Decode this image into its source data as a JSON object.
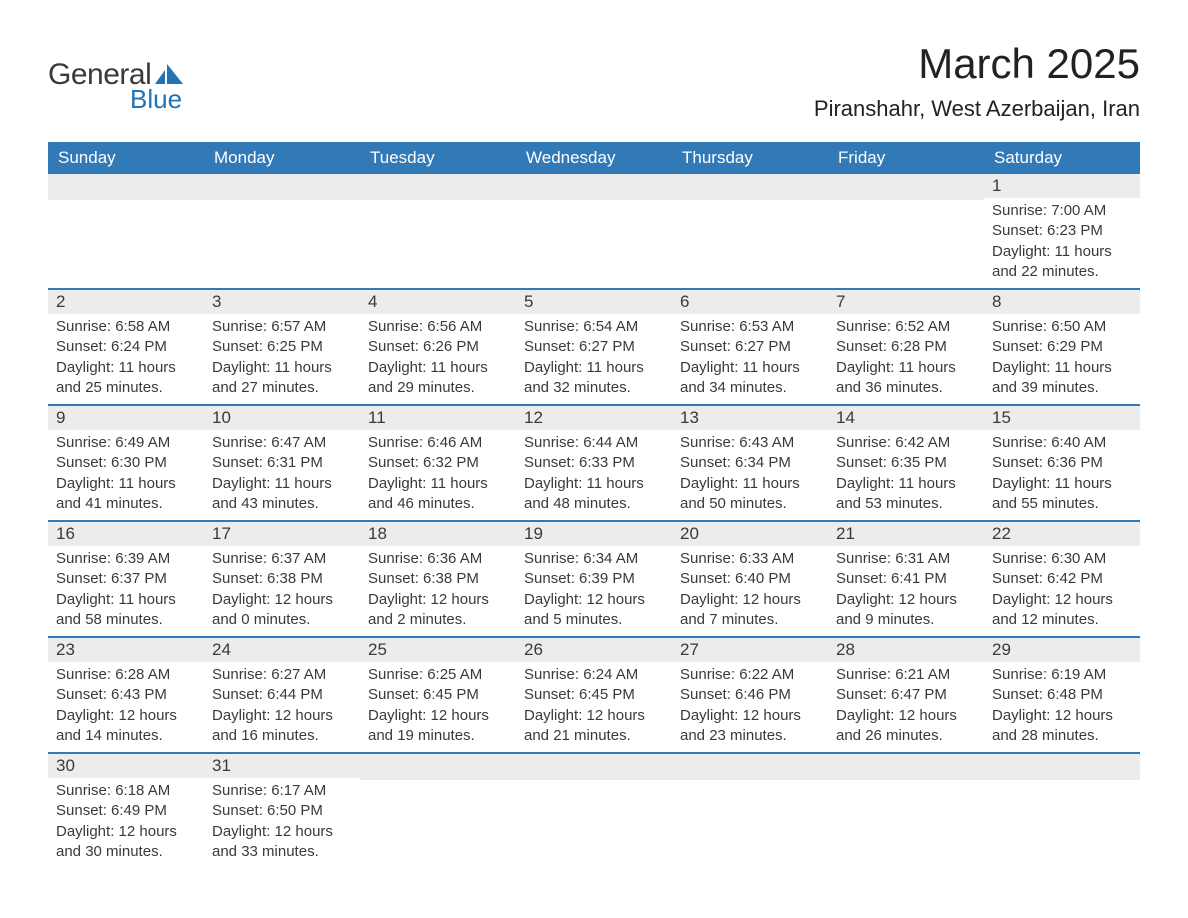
{
  "logo": {
    "text1": "General",
    "text2": "Blue",
    "shape_color": "#2273b5"
  },
  "title": "March 2025",
  "location": "Piranshahr, West Azerbaijan, Iran",
  "colors": {
    "header_bg": "#3279b7",
    "header_text": "#ffffff",
    "daynum_bg": "#ececec",
    "row_border": "#3279b7",
    "text": "#3a3a3a"
  },
  "day_headers": [
    "Sunday",
    "Monday",
    "Tuesday",
    "Wednesday",
    "Thursday",
    "Friday",
    "Saturday"
  ],
  "weeks": [
    [
      null,
      null,
      null,
      null,
      null,
      null,
      {
        "n": "1",
        "sunrise": "7:00 AM",
        "sunset": "6:23 PM",
        "dl1": "11 hours",
        "dl2": "and 22 minutes."
      }
    ],
    [
      {
        "n": "2",
        "sunrise": "6:58 AM",
        "sunset": "6:24 PM",
        "dl1": "11 hours",
        "dl2": "and 25 minutes."
      },
      {
        "n": "3",
        "sunrise": "6:57 AM",
        "sunset": "6:25 PM",
        "dl1": "11 hours",
        "dl2": "and 27 minutes."
      },
      {
        "n": "4",
        "sunrise": "6:56 AM",
        "sunset": "6:26 PM",
        "dl1": "11 hours",
        "dl2": "and 29 minutes."
      },
      {
        "n": "5",
        "sunrise": "6:54 AM",
        "sunset": "6:27 PM",
        "dl1": "11 hours",
        "dl2": "and 32 minutes."
      },
      {
        "n": "6",
        "sunrise": "6:53 AM",
        "sunset": "6:27 PM",
        "dl1": "11 hours",
        "dl2": "and 34 minutes."
      },
      {
        "n": "7",
        "sunrise": "6:52 AM",
        "sunset": "6:28 PM",
        "dl1": "11 hours",
        "dl2": "and 36 minutes."
      },
      {
        "n": "8",
        "sunrise": "6:50 AM",
        "sunset": "6:29 PM",
        "dl1": "11 hours",
        "dl2": "and 39 minutes."
      }
    ],
    [
      {
        "n": "9",
        "sunrise": "6:49 AM",
        "sunset": "6:30 PM",
        "dl1": "11 hours",
        "dl2": "and 41 minutes."
      },
      {
        "n": "10",
        "sunrise": "6:47 AM",
        "sunset": "6:31 PM",
        "dl1": "11 hours",
        "dl2": "and 43 minutes."
      },
      {
        "n": "11",
        "sunrise": "6:46 AM",
        "sunset": "6:32 PM",
        "dl1": "11 hours",
        "dl2": "and 46 minutes."
      },
      {
        "n": "12",
        "sunrise": "6:44 AM",
        "sunset": "6:33 PM",
        "dl1": "11 hours",
        "dl2": "and 48 minutes."
      },
      {
        "n": "13",
        "sunrise": "6:43 AM",
        "sunset": "6:34 PM",
        "dl1": "11 hours",
        "dl2": "and 50 minutes."
      },
      {
        "n": "14",
        "sunrise": "6:42 AM",
        "sunset": "6:35 PM",
        "dl1": "11 hours",
        "dl2": "and 53 minutes."
      },
      {
        "n": "15",
        "sunrise": "6:40 AM",
        "sunset": "6:36 PM",
        "dl1": "11 hours",
        "dl2": "and 55 minutes."
      }
    ],
    [
      {
        "n": "16",
        "sunrise": "6:39 AM",
        "sunset": "6:37 PM",
        "dl1": "11 hours",
        "dl2": "and 58 minutes."
      },
      {
        "n": "17",
        "sunrise": "6:37 AM",
        "sunset": "6:38 PM",
        "dl1": "12 hours",
        "dl2": "and 0 minutes."
      },
      {
        "n": "18",
        "sunrise": "6:36 AM",
        "sunset": "6:38 PM",
        "dl1": "12 hours",
        "dl2": "and 2 minutes."
      },
      {
        "n": "19",
        "sunrise": "6:34 AM",
        "sunset": "6:39 PM",
        "dl1": "12 hours",
        "dl2": "and 5 minutes."
      },
      {
        "n": "20",
        "sunrise": "6:33 AM",
        "sunset": "6:40 PM",
        "dl1": "12 hours",
        "dl2": "and 7 minutes."
      },
      {
        "n": "21",
        "sunrise": "6:31 AM",
        "sunset": "6:41 PM",
        "dl1": "12 hours",
        "dl2": "and 9 minutes."
      },
      {
        "n": "22",
        "sunrise": "6:30 AM",
        "sunset": "6:42 PM",
        "dl1": "12 hours",
        "dl2": "and 12 minutes."
      }
    ],
    [
      {
        "n": "23",
        "sunrise": "6:28 AM",
        "sunset": "6:43 PM",
        "dl1": "12 hours",
        "dl2": "and 14 minutes."
      },
      {
        "n": "24",
        "sunrise": "6:27 AM",
        "sunset": "6:44 PM",
        "dl1": "12 hours",
        "dl2": "and 16 minutes."
      },
      {
        "n": "25",
        "sunrise": "6:25 AM",
        "sunset": "6:45 PM",
        "dl1": "12 hours",
        "dl2": "and 19 minutes."
      },
      {
        "n": "26",
        "sunrise": "6:24 AM",
        "sunset": "6:45 PM",
        "dl1": "12 hours",
        "dl2": "and 21 minutes."
      },
      {
        "n": "27",
        "sunrise": "6:22 AM",
        "sunset": "6:46 PM",
        "dl1": "12 hours",
        "dl2": "and 23 minutes."
      },
      {
        "n": "28",
        "sunrise": "6:21 AM",
        "sunset": "6:47 PM",
        "dl1": "12 hours",
        "dl2": "and 26 minutes."
      },
      {
        "n": "29",
        "sunrise": "6:19 AM",
        "sunset": "6:48 PM",
        "dl1": "12 hours",
        "dl2": "and 28 minutes."
      }
    ],
    [
      {
        "n": "30",
        "sunrise": "6:18 AM",
        "sunset": "6:49 PM",
        "dl1": "12 hours",
        "dl2": "and 30 minutes."
      },
      {
        "n": "31",
        "sunrise": "6:17 AM",
        "sunset": "6:50 PM",
        "dl1": "12 hours",
        "dl2": "and 33 minutes."
      },
      null,
      null,
      null,
      null,
      null
    ]
  ],
  "labels": {
    "sunrise": "Sunrise: ",
    "sunset": "Sunset: ",
    "daylight": "Daylight: "
  }
}
